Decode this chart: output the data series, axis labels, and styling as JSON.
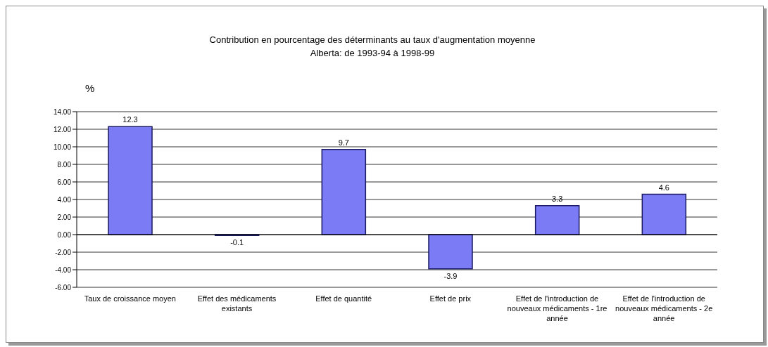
{
  "chart_data": {
    "type": "bar",
    "title": "Contribution en pourcentage des déterminants au taux d'augmentation moyenne",
    "subtitle": "Alberta: de 1993-94 à 1998-99",
    "ylabel": "%",
    "categories": [
      "Taux de croissance moyen",
      "Effet des médicaments existants",
      "Effet de quantité",
      "Effet de prix",
      "Effet de l'introduction de nouveaux médicaments - 1re année",
      "Effet de l'introduction de nouveaux médicaments - 2e année"
    ],
    "values": [
      12.3,
      -0.1,
      9.7,
      -3.9,
      3.3,
      4.6
    ],
    "color": "#7b7bf5",
    "data_labels": true,
    "ylim": [
      -6,
      14
    ],
    "yticks": [
      {
        "value": -6,
        "label": "-6.00"
      },
      {
        "value": -4,
        "label": "-4.00"
      },
      {
        "value": -2,
        "label": "-2.00"
      },
      {
        "value": 0,
        "label": "0.00"
      },
      {
        "value": 2,
        "label": "2.00"
      },
      {
        "value": 4,
        "label": "4.00"
      },
      {
        "value": 6,
        "label": "6.00"
      },
      {
        "value": 8,
        "label": "8.00"
      },
      {
        "value": 10,
        "label": "10.00"
      },
      {
        "value": 12,
        "label": "12.00"
      },
      {
        "value": 14,
        "label": "14.00"
      }
    ],
    "grid": "y"
  }
}
